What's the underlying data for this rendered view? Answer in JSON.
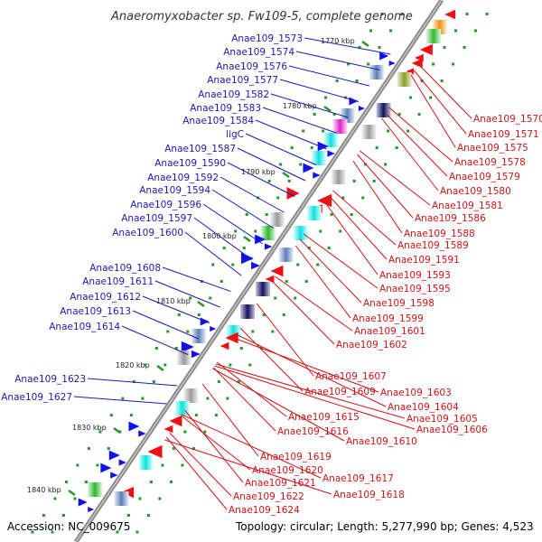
{
  "title": "Anaeromyxobacter sp. Fw109-5, complete genome",
  "accession": "Accession: NC_009675",
  "topology": "Topology: circular; Length: 5,277,990 bp; Genes: 4,523",
  "colors": {
    "left_label": "#1a1ab4",
    "right_label": "#d01414",
    "backbone": "#8c8c8c",
    "tick": "#229922"
  },
  "kbp_ticks": [
    "1770 kbp",
    "1780 kbp",
    "1790 kbp",
    "1800 kbp",
    "1810 kbp",
    "1820 kbp",
    "1830 kbp",
    "1840 kbp"
  ],
  "left_labels": [
    "Anae109_1573",
    "Anae109_1574",
    "Anae109_1576",
    "Anae109_1577",
    "Anae109_1582",
    "Anae109_1583",
    "Anae109_1584",
    "ligC",
    "Anae109_1587",
    "Anae109_1590",
    "Anae109_1592",
    "Anae109_1594",
    "Anae109_1596",
    "Anae109_1597",
    "Anae109_1600",
    "Anae109_1608",
    "Anae109_1611",
    "Anae109_1612",
    "Anae109_1613",
    "Anae109_1614",
    "Anae109_1623",
    "Anae109_1627"
  ],
  "right_labels": [
    "Anae109_1570",
    "Anae109_1571",
    "Anae109_1575",
    "Anae109_1578",
    "Anae109_1579",
    "Anae109_1580",
    "Anae109_1581",
    "Anae109_1586",
    "Anae109_1588",
    "Anae109_1589",
    "Anae109_1591",
    "Anae109_1593",
    "Anae109_1595",
    "Anae109_1598",
    "Anae109_1599",
    "Anae109_1601",
    "Anae109_1602",
    "Anae109_1607",
    "Anae109_1603",
    "Anae109_1609",
    "Anae109_1604",
    "Anae109_1605",
    "Anae109_1606",
    "Anae109_1610",
    "Anae109_1615",
    "Anae109_1616",
    "Anae109_1619",
    "Anae109_1620",
    "Anae109_1617",
    "Anae109_1621",
    "Anae109_1618",
    "Anae109_1622",
    "Anae109_1624"
  ]
}
